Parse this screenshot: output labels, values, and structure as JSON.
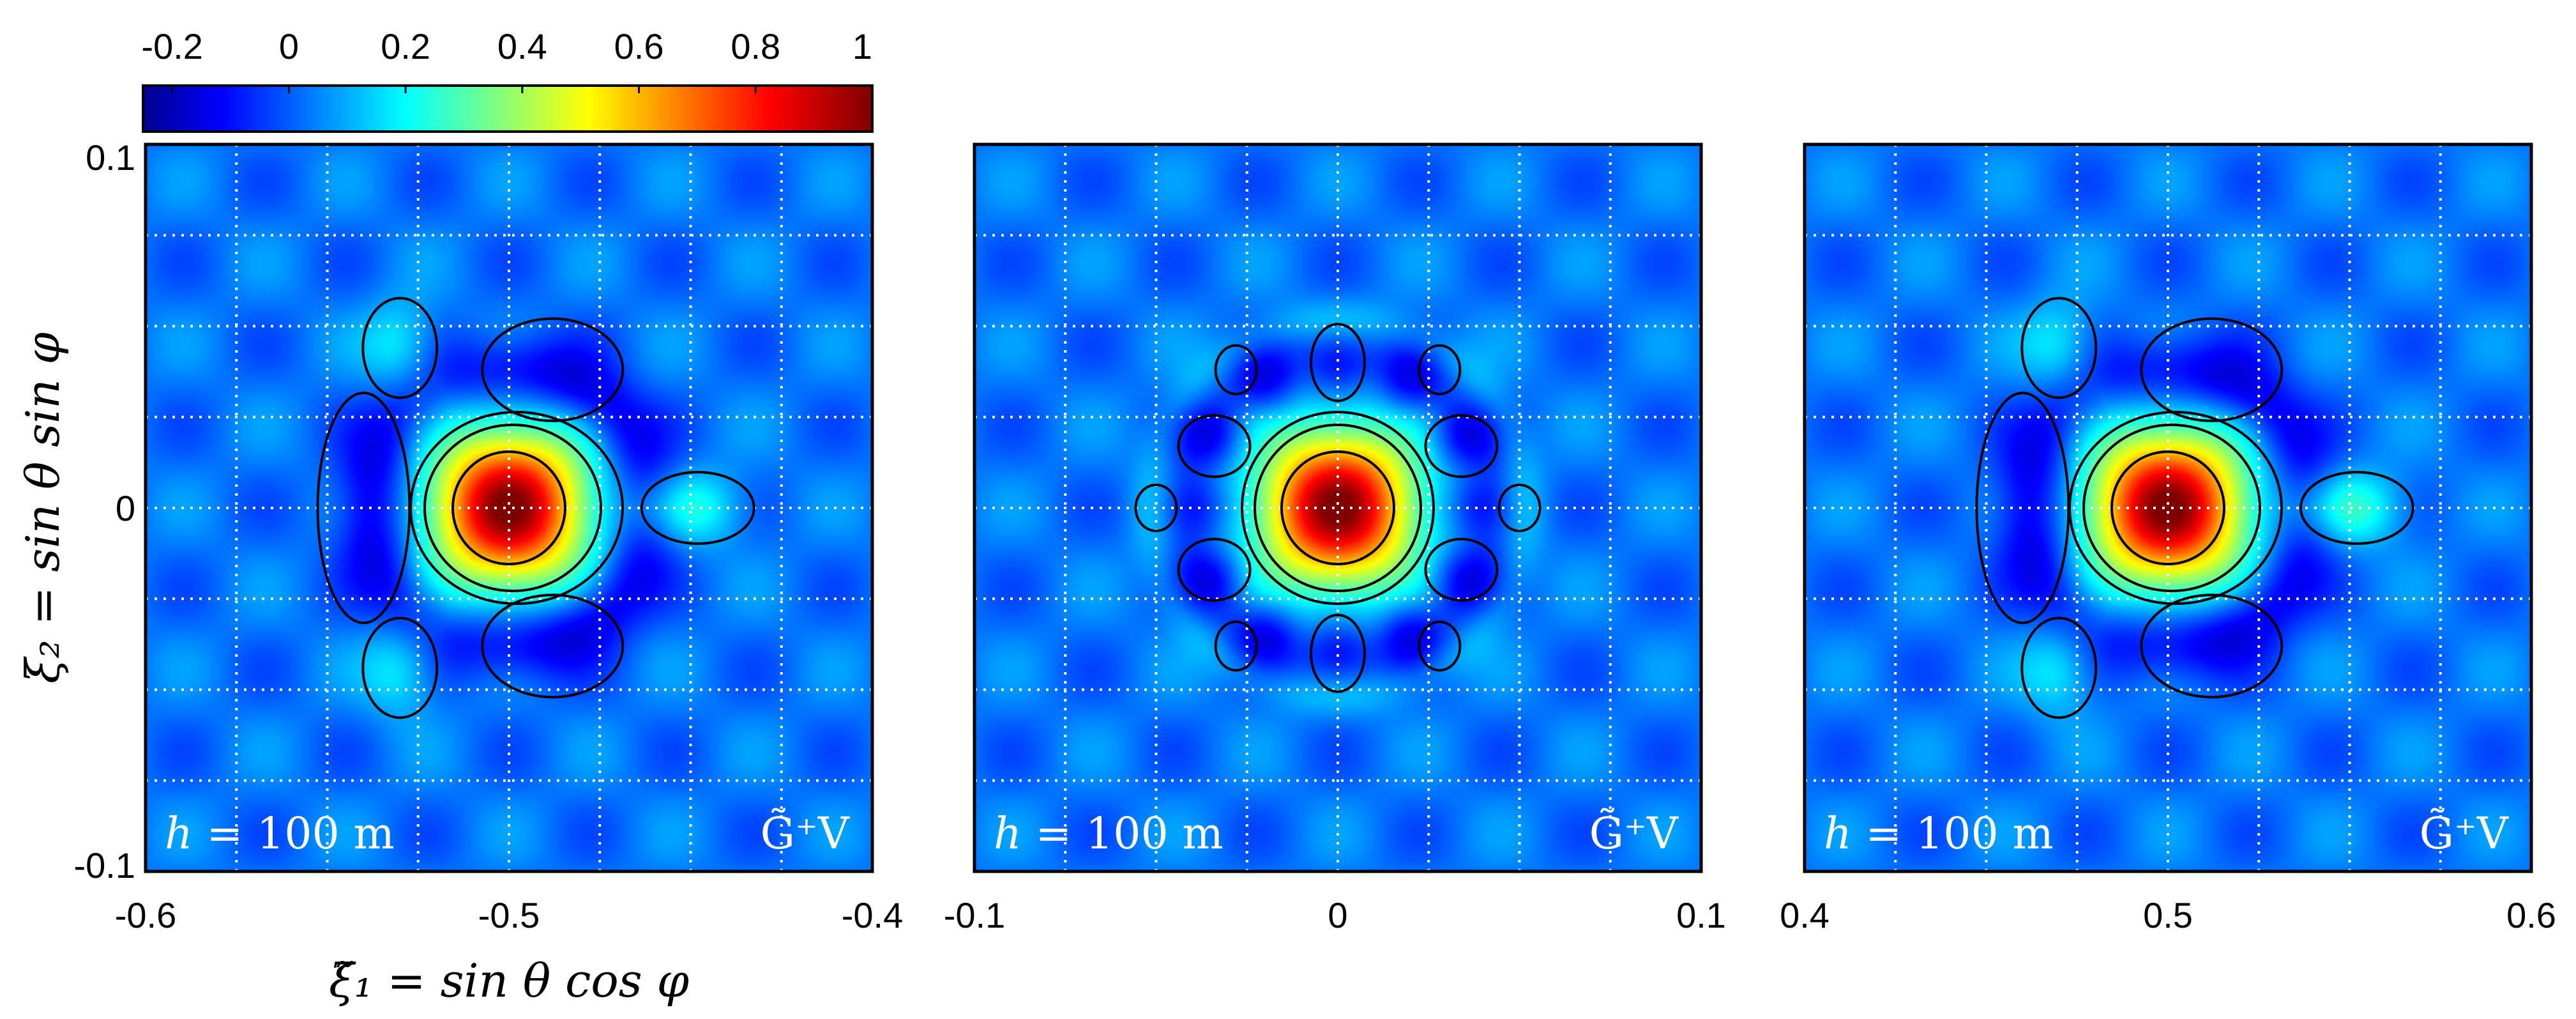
{
  "chart_data": {
    "type": "heatmap",
    "colormap": "jet",
    "colorbar": {
      "range": [
        -0.25,
        1.0
      ],
      "tick_labels": [
        "-0.2",
        "0",
        "0.2",
        "0.4",
        "0.6",
        "0.8",
        "1"
      ],
      "tick_values": [
        -0.2,
        0,
        0.2,
        0.4,
        0.6,
        0.8,
        1.0
      ]
    },
    "ylabel": "ξ₂ = sin θ sin φ",
    "xlabel": "ξ̃₁ = sin θ cos φ",
    "ylim": [
      -0.1,
      0.1
    ],
    "y_tick_labels": [
      "0.1",
      "0",
      "-0.1"
    ],
    "contour_levels": [
      -0.05,
      0.15,
      0.35,
      0.55
    ],
    "grid": "dotted",
    "panels": [
      {
        "xlim": [
          -0.6,
          -0.4
        ],
        "x_tick_labels": [
          "-0.6",
          "-0.5",
          "-0.4"
        ],
        "peak_x": -0.5,
        "peak_y": 0,
        "peak_value": 1.0,
        "annotation_left": "h = 100 m",
        "annotation_right": "G̃⁺V",
        "side_lobe": "right"
      },
      {
        "xlim": [
          -0.1,
          0.1
        ],
        "x_tick_labels": [
          "-0.1",
          "0",
          "0.1"
        ],
        "peak_x": 0,
        "peak_y": 0,
        "peak_value": 1.0,
        "annotation_left": "h = 100 m",
        "annotation_right": "G̃⁺V",
        "side_lobe": "symmetric"
      },
      {
        "xlim": [
          0.4,
          0.6
        ],
        "x_tick_labels": [
          "0.4",
          "0.5",
          "0.6"
        ],
        "peak_x": 0.5,
        "peak_y": 0,
        "peak_value": 1.0,
        "annotation_left": "h = 100 m",
        "annotation_right": "G̃⁺V",
        "side_lobe": "right-merged"
      }
    ]
  }
}
